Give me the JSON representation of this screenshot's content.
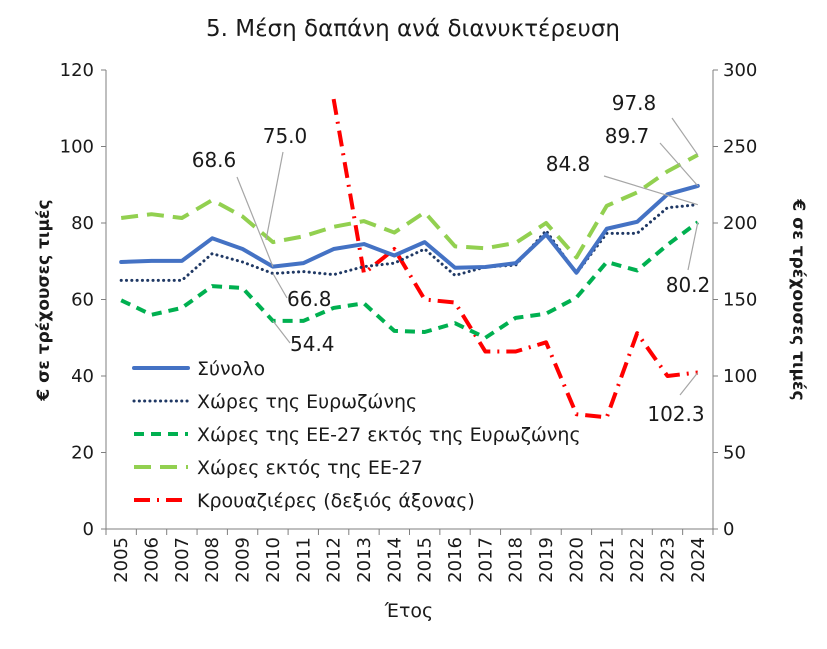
{
  "chart_data": {
    "type": "line",
    "title": "5. Μέση δαπάνη ανά διανυκτέρευση",
    "xlabel": "Έτος",
    "ylabel": "€ σε τρέχουσες τιμές",
    "y2label": "€ σε τρέχουσες τιμές",
    "ylim": [
      0,
      120
    ],
    "y2lim": [
      0,
      300
    ],
    "yticks": [
      "0",
      "20",
      "40",
      "60",
      "80",
      "100",
      "120"
    ],
    "y2ticks": [
      "0",
      "50",
      "100",
      "150",
      "200",
      "250",
      "300"
    ],
    "grid": false,
    "legend_position": "lower-left",
    "categories": [
      "2005",
      "2006",
      "2007",
      "2008",
      "2009",
      "2010",
      "2011",
      "2012",
      "2013",
      "2014",
      "2015",
      "2016",
      "2017",
      "2018",
      "2019",
      "2020",
      "2021",
      "2022",
      "2023",
      "2024"
    ],
    "series": [
      {
        "name": "Σύνολο",
        "axis": "left",
        "color": "#4472C4",
        "style": "solid",
        "values": [
          69.8,
          70.1,
          70.1,
          76.0,
          73.2,
          68.6,
          69.5,
          73.2,
          74.5,
          71.5,
          75.0,
          68.3,
          68.5,
          69.5,
          77.0,
          67.0,
          78.5,
          80.3,
          87.5,
          89.7
        ]
      },
      {
        "name": "Χώρες της Ευρωζώνης",
        "axis": "left",
        "color": "#1F3864",
        "style": "dotted",
        "values": [
          65.0,
          65.0,
          65.0,
          72.0,
          69.8,
          66.8,
          67.3,
          66.5,
          68.6,
          69.5,
          73.2,
          66.3,
          68.5,
          69.0,
          78.0,
          66.8,
          77.3,
          77.3,
          84.0,
          84.8
        ]
      },
      {
        "name": "Χώρες της ΕΕ-27 εκτός της Ευρωζώνης",
        "axis": "left",
        "color": "#00B050",
        "style": "dashed",
        "values": [
          59.8,
          56.0,
          57.8,
          63.5,
          63.0,
          54.4,
          54.4,
          57.8,
          59.0,
          51.8,
          51.5,
          53.8,
          50.0,
          55.2,
          56.3,
          60.5,
          69.8,
          67.6,
          74.3,
          80.2
        ]
      },
      {
        "name": "Χώρες εκτός της ΕΕ-27",
        "axis": "left",
        "color": "#92D050",
        "style": "longdash",
        "values": [
          81.3,
          82.3,
          81.3,
          86.0,
          81.7,
          75.0,
          76.5,
          79.0,
          80.5,
          77.5,
          82.8,
          73.9,
          73.4,
          74.8,
          80.0,
          71.0,
          84.5,
          88.0,
          93.5,
          97.8
        ]
      },
      {
        "name": "Κρουαζιέρες (δεξιός άξονας)",
        "axis": "right",
        "color": "#FF0000",
        "style": "dashdot",
        "values": [
          null,
          null,
          null,
          null,
          null,
          null,
          null,
          281,
          167,
          183,
          150,
          148,
          116,
          116,
          122,
          75,
          73,
          128,
          100,
          102.3
        ]
      }
    ],
    "annotations": [
      {
        "text": "68.6"
      },
      {
        "text": "75.0"
      },
      {
        "text": "66.8"
      },
      {
        "text": "54.4"
      },
      {
        "text": "97.8"
      },
      {
        "text": "89.7"
      },
      {
        "text": "84.8"
      },
      {
        "text": "80.2"
      },
      {
        "text": "102.3"
      }
    ]
  }
}
